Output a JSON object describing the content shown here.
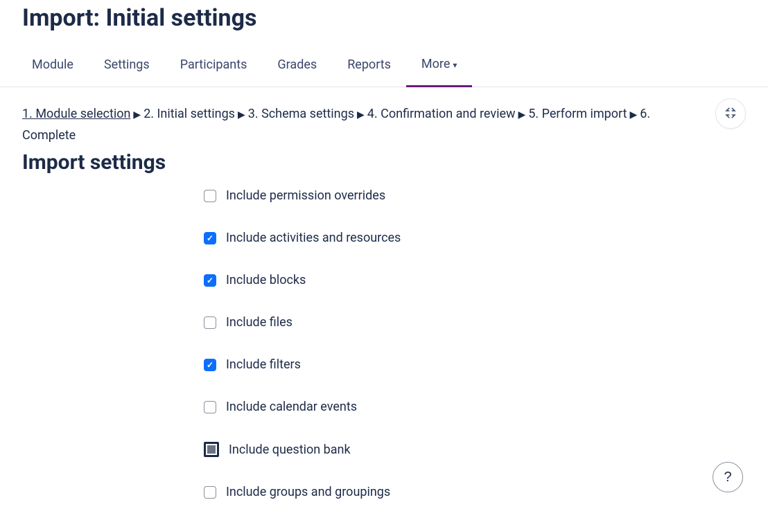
{
  "page_title": "Import: Initial settings",
  "tabs": {
    "items": [
      {
        "label": "Module",
        "active": false,
        "has_chevron": false
      },
      {
        "label": "Settings",
        "active": false,
        "has_chevron": false
      },
      {
        "label": "Participants",
        "active": false,
        "has_chevron": false
      },
      {
        "label": "Grades",
        "active": false,
        "has_chevron": false
      },
      {
        "label": "Reports",
        "active": false,
        "has_chevron": false
      },
      {
        "label": "More",
        "active": true,
        "has_chevron": true
      }
    ]
  },
  "stepper": {
    "steps": [
      {
        "label": "1. Module selection",
        "link": true
      },
      {
        "label": "2. Initial settings",
        "link": false
      },
      {
        "label": "3. Schema settings",
        "link": false
      },
      {
        "label": "4. Confirmation and review",
        "link": false
      },
      {
        "label": "5. Perform import",
        "link": false
      },
      {
        "label": "6. Complete",
        "link": false
      }
    ]
  },
  "section_title": "Import settings",
  "settings": [
    {
      "label": "Include permission overrides",
      "state": "unchecked"
    },
    {
      "label": "Include activities and resources",
      "state": "checked"
    },
    {
      "label": "Include blocks",
      "state": "checked"
    },
    {
      "label": "Include files",
      "state": "unchecked"
    },
    {
      "label": "Include filters",
      "state": "checked"
    },
    {
      "label": "Include calendar events",
      "state": "unchecked"
    },
    {
      "label": "Include question bank",
      "state": "highlighted"
    },
    {
      "label": "Include groups and groupings",
      "state": "unchecked"
    }
  ],
  "help_label": "?",
  "colors": {
    "text": "#1d2b48",
    "tab_underline": "#6a1b7a",
    "checkbox_checked_bg": "#0d6efd",
    "border": "#e4e6ec"
  }
}
